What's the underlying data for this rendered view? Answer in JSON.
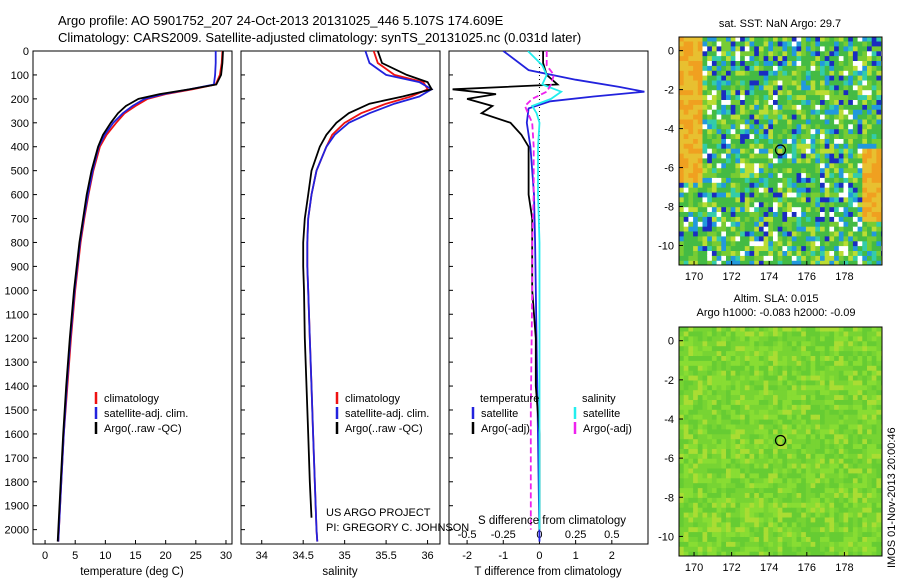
{
  "figure": {
    "title_line1": "Argo profile: AO 5901752_207 24-Oct-2013 20131025_446 5.107S 174.609E",
    "title_line2": "Climatology: CARS2009. Satellite-adjusted climatology: synTS_20131025.nc (0.031d later)",
    "project_line1": "US ARGO PROJECT",
    "project_line2": "PI: GREGORY C. JOHNSON",
    "watermark": "IMOS 01-Nov-2013 20:00:46"
  },
  "colors": {
    "red": "#ee1111",
    "blue": "#2222dd",
    "black": "#000000",
    "cyan": "#22eeee",
    "magenta": "#ee22ee"
  },
  "chart_data": [
    {
      "type": "line",
      "name": "temperature-profile",
      "xlabel": "temperature (deg C)",
      "ylabel": "",
      "xlim": [
        -2,
        31
      ],
      "ylim": [
        2060,
        0
      ],
      "xticks": [
        0,
        5,
        10,
        15,
        20,
        25,
        30
      ],
      "yticks": [
        0,
        100,
        200,
        300,
        400,
        500,
        600,
        700,
        800,
        900,
        1000,
        1100,
        1200,
        1300,
        1400,
        1500,
        1600,
        1700,
        1800,
        1900,
        2000
      ],
      "legend": [
        "climatology",
        "satellite-adj. clim.",
        "Argo(..raw -QC)"
      ],
      "series": [
        {
          "name": "climatology",
          "color": "red",
          "depth": [
            0,
            50,
            100,
            140,
            160,
            180,
            200,
            230,
            260,
            300,
            350,
            400,
            500,
            600,
            700,
            800,
            1000,
            1200,
            1400,
            1600,
            1800,
            2000,
            2050
          ],
          "values": [
            29.4,
            29.3,
            29.0,
            28.3,
            24.5,
            20.0,
            17.0,
            15.0,
            13.2,
            11.8,
            10.2,
            9.1,
            8.0,
            7.2,
            6.5,
            5.9,
            5.0,
            4.3,
            3.7,
            3.1,
            2.7,
            2.3,
            2.2
          ]
        },
        {
          "name": "satellite-adj. clim.",
          "color": "blue",
          "depth": [
            0,
            50,
            100,
            140,
            160,
            180,
            200,
            230,
            260,
            300,
            350,
            400,
            500,
            600,
            700,
            800,
            1000,
            1200,
            1400,
            1600,
            1800,
            2000,
            2050
          ],
          "values": [
            28.3,
            28.3,
            28.2,
            28.0,
            24.0,
            19.6,
            16.5,
            14.5,
            12.9,
            11.3,
            9.9,
            8.9,
            7.9,
            7.1,
            6.4,
            5.8,
            4.9,
            4.2,
            3.6,
            3.1,
            2.7,
            2.3,
            2.2
          ]
        },
        {
          "name": "Argo(..raw -QC)",
          "color": "black",
          "depth": [
            0,
            50,
            100,
            140,
            160,
            180,
            200,
            230,
            260,
            300,
            350,
            400,
            500,
            600,
            700,
            800,
            1000,
            1200,
            1400,
            1600,
            1800,
            2000,
            2050
          ],
          "values": [
            29.5,
            29.4,
            29.2,
            28.4,
            24.0,
            19.0,
            15.5,
            13.4,
            12.1,
            10.9,
            9.6,
            8.8,
            7.7,
            6.9,
            6.3,
            5.7,
            4.8,
            4.1,
            3.5,
            3.0,
            2.6,
            2.2,
            2.1
          ]
        }
      ]
    },
    {
      "type": "line",
      "name": "salinity-profile",
      "xlabel": "salinity",
      "xlim": [
        33.75,
        36.15
      ],
      "ylim": [
        2060,
        0
      ],
      "xticks": [
        34,
        34.5,
        35,
        35.5,
        36
      ],
      "legend": [
        "climatology",
        "satellite-adj. clim.",
        "Argo(..raw -QC)"
      ],
      "series": [
        {
          "name": "climatology",
          "color": "red",
          "depth": [
            0,
            50,
            100,
            130,
            160,
            190,
            220,
            260,
            300,
            350,
            400,
            500,
            600,
            700,
            800,
            900,
            1000,
            1200,
            1400,
            1600,
            1800,
            2000,
            2050
          ],
          "values": [
            35.35,
            35.4,
            35.6,
            35.95,
            36.0,
            35.8,
            35.5,
            35.2,
            35.0,
            34.85,
            34.78,
            34.66,
            34.6,
            34.56,
            34.55,
            34.55,
            34.56,
            34.58,
            34.6,
            34.62,
            34.64,
            34.66,
            34.67
          ]
        },
        {
          "name": "satellite-adj. clim.",
          "color": "blue",
          "depth": [
            0,
            50,
            100,
            130,
            160,
            190,
            220,
            260,
            300,
            350,
            400,
            500,
            600,
            700,
            800,
            900,
            1000,
            1200,
            1400,
            1600,
            1800,
            2000,
            2050
          ],
          "values": [
            35.25,
            35.3,
            35.5,
            35.9,
            36.05,
            35.9,
            35.6,
            35.3,
            35.05,
            34.88,
            34.78,
            34.66,
            34.6,
            34.56,
            34.55,
            34.55,
            34.56,
            34.58,
            34.6,
            34.62,
            34.64,
            34.66,
            34.67
          ]
        },
        {
          "name": "Argo(..raw -QC)",
          "color": "black",
          "depth": [
            0,
            50,
            100,
            130,
            160,
            190,
            220,
            260,
            300,
            350,
            400,
            500,
            600,
            700,
            800,
            900,
            1000,
            1200,
            1400,
            1600,
            1800,
            1950
          ],
          "values": [
            35.4,
            35.45,
            35.75,
            36.0,
            36.05,
            35.7,
            35.3,
            35.05,
            34.9,
            34.78,
            34.7,
            34.6,
            34.56,
            34.52,
            34.5,
            34.5,
            34.51,
            34.52,
            34.54,
            34.56,
            34.58,
            34.6
          ]
        }
      ]
    },
    {
      "type": "line",
      "name": "difference-profile",
      "xlabel": "T difference from climatology",
      "xlabel_top": "S difference from climatology",
      "xlim": [
        -2.5,
        3
      ],
      "ylim": [
        2060,
        0
      ],
      "xticks": [
        -2,
        -1,
        0,
        1,
        2
      ],
      "xticks_s": [
        -0.5,
        -0.25,
        0,
        0.25,
        0.5
      ],
      "legend_temperature_title": "temperature",
      "legend_salinity_title": "salinity",
      "legend_items": [
        "satellite",
        "Argo(-adj)",
        "satellite",
        "Argo(-adj)"
      ],
      "series": [
        {
          "name": "T satellite",
          "color": "blue",
          "depth": [
            0,
            80,
            120,
            150,
            170,
            190,
            210,
            240,
            300,
            400,
            600,
            800,
            1000,
            1500,
            2050
          ],
          "values": [
            -1.0,
            -0.3,
            1.0,
            2.2,
            2.9,
            1.5,
            0.3,
            -0.3,
            -0.35,
            -0.25,
            -0.15,
            -0.12,
            -0.1,
            -0.05,
            0.0
          ]
        },
        {
          "name": "T Argo(-adj)",
          "color": "black",
          "depth": [
            0,
            50,
            100,
            140,
            160,
            180,
            200,
            230,
            260,
            300,
            350,
            400,
            500,
            600,
            700,
            800,
            1000,
            1200,
            1400,
            1600,
            1800,
            2000
          ],
          "values": [
            0.1,
            0.1,
            0.2,
            0.5,
            -2.4,
            -1.2,
            -2.0,
            -1.3,
            -1.6,
            -0.8,
            -0.5,
            -0.3,
            -0.3,
            -0.3,
            -0.2,
            -0.2,
            -0.2,
            -0.1,
            -0.1,
            0.0,
            0.0,
            0.0
          ]
        },
        {
          "name": "S satellite",
          "color": "cyan",
          "depth": [
            0,
            60,
            100,
            140,
            170,
            200,
            230,
            260,
            300,
            400,
            600,
            800,
            1000,
            1500,
            2000
          ],
          "values": [
            -0.08,
            0.02,
            0.05,
            0.02,
            0.15,
            0.08,
            -0.05,
            -0.02,
            0.0,
            -0.01,
            -0.01,
            0.0,
            0.0,
            0.0,
            0.0
          ]
        },
        {
          "name": "S Argo(-adj)",
          "color": "magenta",
          "depth": [
            0,
            60,
            100,
            140,
            170,
            200,
            230,
            260,
            300,
            400,
            600,
            800,
            1000,
            1500,
            2000
          ],
          "values": [
            0.05,
            0.05,
            0.1,
            0.08,
            0.05,
            -0.05,
            -0.1,
            -0.08,
            -0.05,
            -0.04,
            -0.04,
            -0.05,
            -0.05,
            -0.06,
            -0.06
          ]
        }
      ]
    },
    {
      "type": "heatmap",
      "name": "sst-map",
      "title": "sat. SST: NaN Argo: 29.7",
      "xlim": [
        169.2,
        180
      ],
      "ylim": [
        -11,
        0.7
      ],
      "xticks": [
        170,
        172,
        174,
        176,
        178
      ],
      "yticks": [
        0,
        -2,
        -4,
        -6,
        -8,
        -10
      ],
      "argo_position": [
        174.6,
        -5.1
      ]
    },
    {
      "type": "heatmap",
      "name": "sla-map",
      "title_line1": "Altim. SLA: 0.015",
      "title_line2": "Argo h1000: -0.083 h2000: -0.09",
      "xlim": [
        169.2,
        180
      ],
      "ylim": [
        -11,
        0.7
      ],
      "xticks": [
        170,
        172,
        174,
        176,
        178
      ],
      "yticks": [
        0,
        -2,
        -4,
        -6,
        -8,
        -10
      ],
      "argo_position": [
        174.6,
        -5.1
      ]
    }
  ]
}
